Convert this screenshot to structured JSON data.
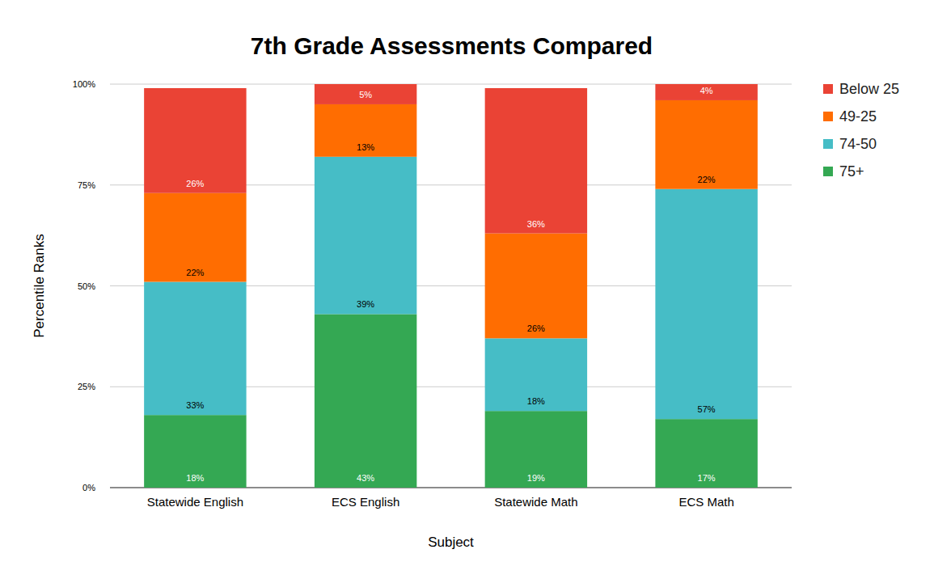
{
  "chart_data": {
    "type": "bar",
    "stacked": true,
    "title": "7th Grade Assessments Compared",
    "x_label": "Subject",
    "y_label": "Percentile Ranks",
    "categories": [
      "Statewide English",
      "ECS English",
      "Statewide Math",
      "ECS Math"
    ],
    "series": [
      {
        "name": "75+",
        "color": "#34a853",
        "values": [
          18,
          43,
          19,
          17
        ],
        "value_labels": [
          "18%",
          "43%",
          "19%",
          "17%"
        ]
      },
      {
        "name": "74-50",
        "color": "#46bdc6",
        "values": [
          33,
          39,
          18,
          57
        ],
        "value_labels": [
          "33%",
          "39%",
          "18%",
          "57%"
        ]
      },
      {
        "name": "49-25",
        "color": "#ff6d01",
        "values": [
          22,
          13,
          26,
          22
        ],
        "value_labels": [
          "22%",
          "13%",
          "26%",
          "22%"
        ]
      },
      {
        "name": "Below 25",
        "color": "#ea4335",
        "values": [
          26,
          5,
          36,
          4
        ],
        "value_labels": [
          "26%",
          "5%",
          "36%",
          "4%"
        ]
      }
    ],
    "ylim": [
      0,
      100
    ],
    "yticks": [
      {
        "value": 0,
        "label": "0%"
      },
      {
        "value": 25,
        "label": "25%"
      },
      {
        "value": 50,
        "label": "50%"
      },
      {
        "value": 75,
        "label": "75%"
      },
      {
        "value": 100,
        "label": "100%"
      }
    ],
    "grid": true,
    "legend": "right",
    "data_labels": true
  }
}
